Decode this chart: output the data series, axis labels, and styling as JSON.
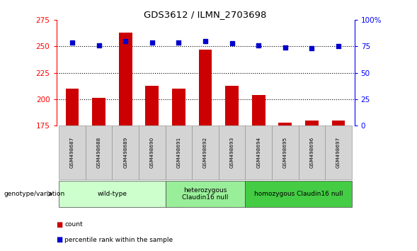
{
  "title": "GDS3612 / ILMN_2703698",
  "samples": [
    "GSM498687",
    "GSM498688",
    "GSM498689",
    "GSM498690",
    "GSM498691",
    "GSM498692",
    "GSM498693",
    "GSM498694",
    "GSM498695",
    "GSM498696",
    "GSM498697"
  ],
  "bar_values": [
    210,
    201,
    263,
    213,
    210,
    247,
    213,
    204,
    178,
    180,
    180
  ],
  "percentile_values": [
    79,
    76,
    80,
    79,
    79,
    80,
    78,
    76,
    74,
    73,
    75
  ],
  "bar_color": "#cc0000",
  "percentile_color": "#0000cc",
  "ylim_left": [
    175,
    275
  ],
  "ylim_right": [
    0,
    100
  ],
  "yticks_left": [
    175,
    200,
    225,
    250,
    275
  ],
  "yticks_right": [
    0,
    25,
    50,
    75,
    100
  ],
  "ytick_labels_right": [
    "0",
    "25",
    "50",
    "75",
    "100%"
  ],
  "dotted_lines": [
    200,
    225,
    250
  ],
  "groups": [
    {
      "label": "wild-type",
      "start": 0,
      "end": 3,
      "color": "#ccffcc"
    },
    {
      "label": "heterozygous\nClaudin16 null",
      "start": 4,
      "end": 6,
      "color": "#99ee99"
    },
    {
      "label": "homozygous Claudin16 null",
      "start": 7,
      "end": 10,
      "color": "#44cc44"
    }
  ],
  "legend_count_label": "count",
  "legend_percentile_label": "percentile rank within the sample",
  "genotype_label": "genotype/variation",
  "background_color": "#ffffff",
  "sample_box_color": "#d4d4d4",
  "bar_width": 0.5
}
